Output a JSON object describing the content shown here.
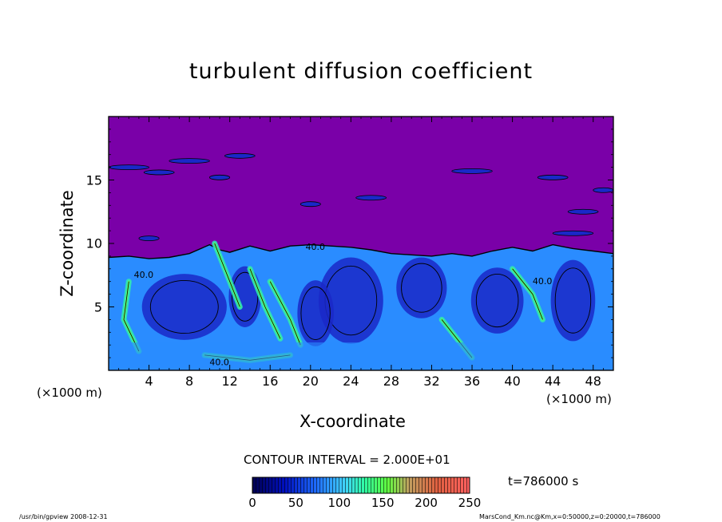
{
  "chart_data": {
    "type": "heatmap",
    "title": "turbulent diffusion coefficient",
    "xlabel": "X-coordinate",
    "ylabel": "Z-coordinate",
    "x_unit_left": "(×1000 m)",
    "x_unit_right": "(×1000 m)",
    "xlim": [
      0,
      50
    ],
    "ylim": [
      0,
      20
    ],
    "x_ticks": [
      "4",
      "8",
      "12",
      "16",
      "20",
      "24",
      "28",
      "32",
      "36",
      "40",
      "44",
      "48"
    ],
    "y_ticks": [
      "5",
      "10",
      "15"
    ],
    "contour_interval_label": "CONTOUR INTERVAL = 2.000E+01",
    "contour_labels": [
      "40.0",
      "40.0",
      "40.0",
      "40.0"
    ],
    "time_label": "t=786000 s",
    "colorbar": {
      "min": 0,
      "max": 250,
      "ticks": [
        "0",
        "50",
        "100",
        "150",
        "200",
        "250"
      ]
    },
    "boundary_layer_top": [
      [
        0,
        8.9
      ],
      [
        2,
        9.0
      ],
      [
        4,
        8.8
      ],
      [
        6,
        8.9
      ],
      [
        8,
        9.2
      ],
      [
        10,
        9.9
      ],
      [
        11,
        9.5
      ],
      [
        12,
        9.3
      ],
      [
        14,
        9.8
      ],
      [
        16,
        9.4
      ],
      [
        18,
        9.8
      ],
      [
        20,
        9.9
      ],
      [
        22,
        9.8
      ],
      [
        24,
        9.7
      ],
      [
        26,
        9.5
      ],
      [
        28,
        9.2
      ],
      [
        30,
        9.1
      ],
      [
        32,
        9.0
      ],
      [
        34,
        9.2
      ],
      [
        36,
        9.0
      ],
      [
        38,
        9.4
      ],
      [
        40,
        9.7
      ],
      [
        42,
        9.4
      ],
      [
        44,
        9.9
      ],
      [
        46,
        9.6
      ],
      [
        48,
        9.4
      ],
      [
        50,
        9.2
      ]
    ]
  },
  "footer": {
    "program": "/usr/bin/gpview   2008-12-31",
    "file": "MarsCond_Km.nc@Km,x=0:50000,z=0:20000,t=786000"
  },
  "colors": {
    "background": "#7a00a8",
    "low": "#1a28c8",
    "mid": "#2a8cff",
    "high": "#30e8b0",
    "peak": "#60ff60"
  }
}
